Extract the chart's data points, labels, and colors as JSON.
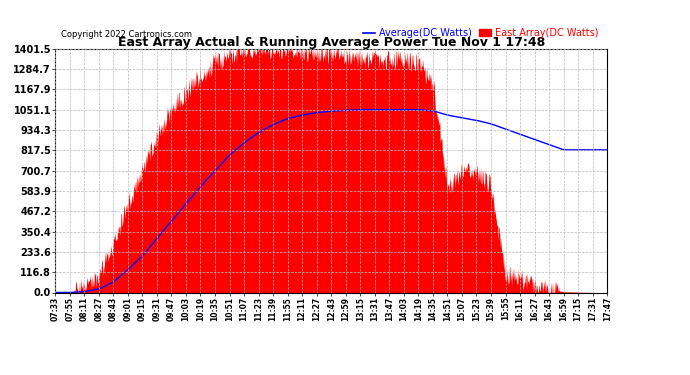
{
  "title": "East Array Actual & Running Average Power Tue Nov 1 17:48",
  "copyright": "Copyright 2022 Cartronics.com",
  "legend_avg": "Average(DC Watts)",
  "legend_east": "East Array(DC Watts)",
  "ylim": [
    0,
    1401.5
  ],
  "yticks": [
    0.0,
    116.8,
    233.6,
    350.4,
    467.2,
    583.9,
    700.7,
    817.5,
    934.3,
    1051.1,
    1167.9,
    1284.7,
    1401.5
  ],
  "xtick_labels": [
    "07:33",
    "07:55",
    "08:11",
    "08:27",
    "08:43",
    "09:01",
    "09:15",
    "09:31",
    "09:47",
    "10:03",
    "10:19",
    "10:35",
    "10:51",
    "11:07",
    "11:23",
    "11:39",
    "11:55",
    "12:11",
    "12:27",
    "12:43",
    "12:59",
    "13:15",
    "13:31",
    "13:47",
    "14:03",
    "14:19",
    "14:35",
    "14:51",
    "15:07",
    "15:23",
    "15:39",
    "15:55",
    "16:11",
    "16:27",
    "16:43",
    "16:59",
    "17:15",
    "17:31",
    "17:47"
  ],
  "background_color": "#ffffff",
  "fill_color": "#ff0000",
  "line_color": "#0000ff",
  "grid_color": "#bbbbbb",
  "title_color": "#000000",
  "legend_avg_color": "#0000ff",
  "legend_east_color": "#ff0000"
}
